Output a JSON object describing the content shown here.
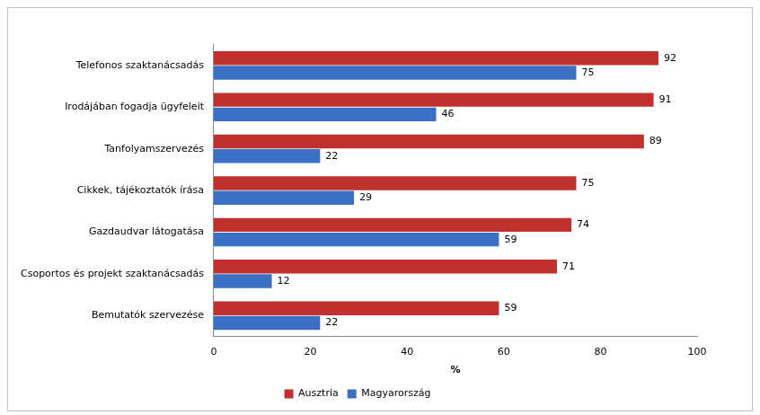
{
  "chart_data": {
    "type": "bar",
    "orientation": "horizontal",
    "categories": [
      "Telefonos szaktanácsadás",
      "Irodájában fogadja ügyfeleit",
      "Tanfolyamszervezés",
      "Cikkek, tájékoztatók írása",
      "Gazdaudvar látogatása",
      "Csoportos és projekt szaktanácsadás",
      "Bemutatók szervezése"
    ],
    "series": [
      {
        "name": "Ausztria",
        "color": "#c0302e",
        "values": [
          92,
          91,
          89,
          75,
          74,
          71,
          59
        ]
      },
      {
        "name": "Magyarország",
        "color": "#3a6fc6",
        "values": [
          75,
          46,
          22,
          29,
          59,
          12,
          22
        ]
      }
    ],
    "x_label": "%",
    "xlim": [
      0,
      100
    ],
    "xticks": [
      0,
      20,
      40,
      60,
      80,
      100
    ],
    "grid": false,
    "legend": "bottom",
    "data_labels": true
  }
}
